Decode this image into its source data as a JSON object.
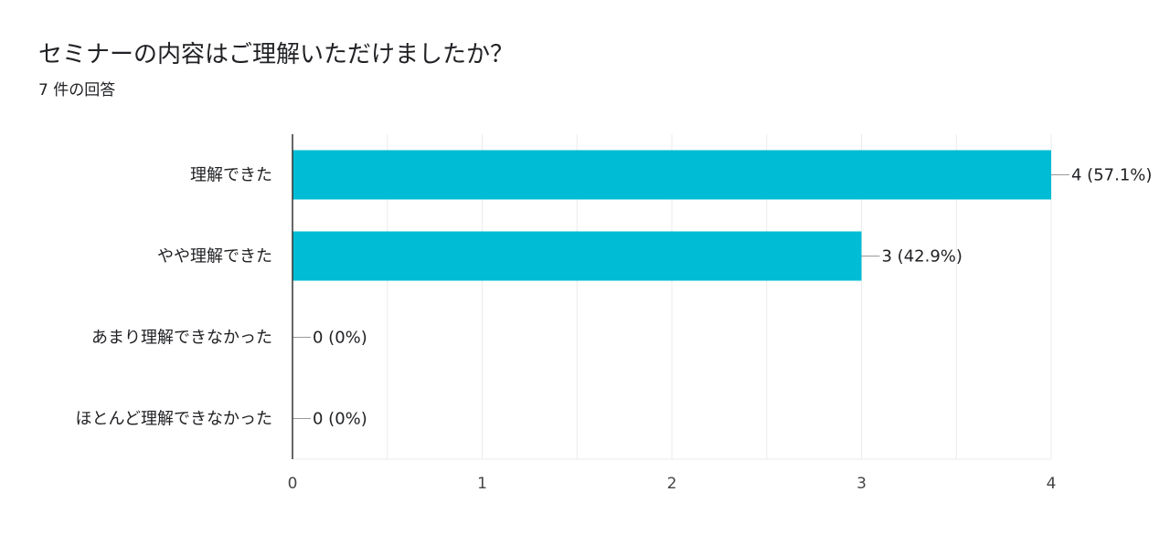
{
  "question": {
    "title": "セミナーの内容はご理解いただけましたか？",
    "response_count": "7 件の回答"
  },
  "colors": {
    "bar": "#00BCD4",
    "grid": "#EBEBEB",
    "axis": "#333333",
    "leader": "#999999"
  },
  "chart_data": {
    "type": "bar",
    "orientation": "horizontal",
    "categories": [
      "理解できた",
      "やや理解できた",
      "あまり理解できなかった",
      "ほとんど理解できなかった"
    ],
    "values": [
      4,
      3,
      0,
      0
    ],
    "data_labels": [
      "4 (57.1%)",
      "3 (42.9%)",
      "0 (0%)",
      "0 (0%)"
    ],
    "xlim": [
      0,
      4
    ],
    "x_ticks": [
      0,
      1,
      2,
      3,
      4
    ],
    "grid": true,
    "legend": "none"
  }
}
